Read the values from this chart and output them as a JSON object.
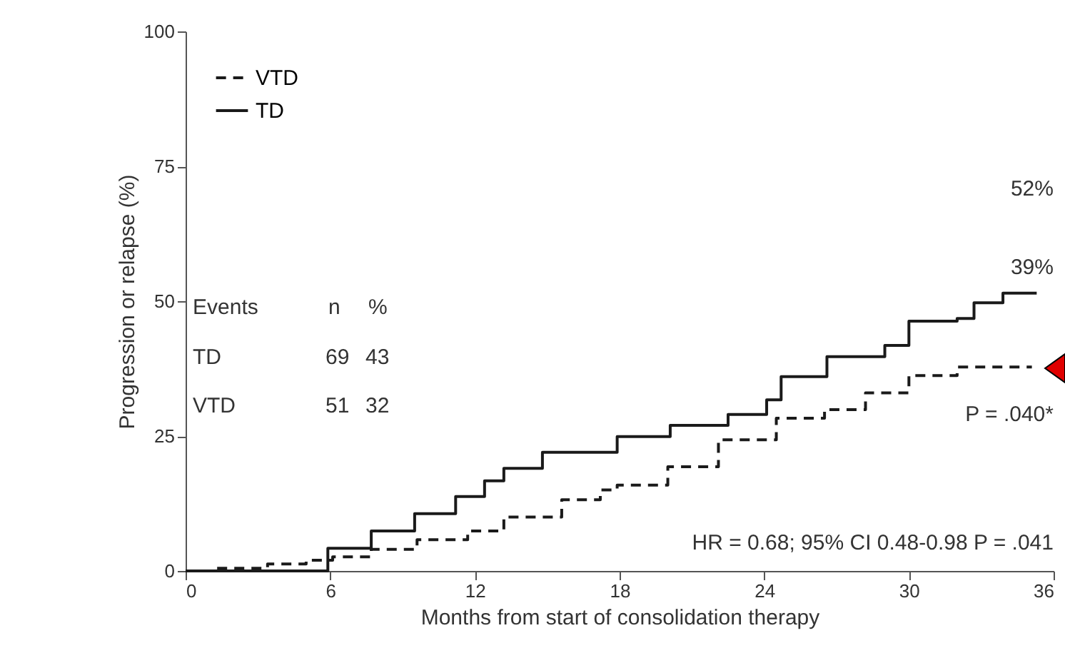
{
  "chart_data": {
    "type": "step",
    "xlabel": "Months from start of consolidation therapy",
    "ylabel": "Progression or relapse (%)",
    "xlim": [
      0,
      36
    ],
    "xticks": [
      0,
      6,
      12,
      18,
      24,
      30,
      36
    ],
    "ylim": [
      0,
      100
    ],
    "yticks": [
      0,
      25,
      50,
      75,
      100
    ],
    "grid": false,
    "legend": "top left",
    "series": [
      {
        "name": "VTD",
        "color": "#1a1a1a",
        "line_style": "dashed",
        "x": [
          0,
          1.2,
          3.4,
          5,
          6.1,
          7.7,
          9.6,
          11.7,
          13.2,
          15.6,
          17.2,
          17.9,
          20,
          22.1,
          24.5,
          26.5,
          28.2,
          30,
          32,
          35.1
        ],
        "values": [
          0,
          0.5,
          1.3,
          2,
          2.6,
          4,
          5.8,
          7.4,
          10,
          13.2,
          15,
          15.9,
          19.3,
          24.3,
          28.3,
          29.9,
          33,
          36.2,
          37.8,
          37.8
        ]
      },
      {
        "name": "TD",
        "color": "#1a1a1a",
        "line_style": "solid",
        "x": [
          0,
          4.1,
          5.9,
          7.7,
          9.5,
          11.2,
          12.4,
          13.2,
          14.8,
          16.6,
          17.9,
          20.1,
          22.5,
          24.1,
          24.7,
          26.6,
          29,
          30,
          32,
          32.7,
          33.9,
          35.3
        ],
        "values": [
          0,
          0,
          4.2,
          7.4,
          10.6,
          13.8,
          16.7,
          19,
          22,
          22,
          24.9,
          27,
          29,
          31.7,
          36,
          39.7,
          41.8,
          46.3,
          46.8,
          49.7,
          51.5,
          51.5
        ]
      }
    ],
    "annotations": [
      "52%",
      "39%",
      "P = .040*",
      "HR = 0.68; 95% CI 0.48-0.98 P = .041",
      "Events",
      "n",
      "%",
      "TD",
      "69",
      "43",
      "VTD",
      "51",
      "32"
    ]
  }
}
